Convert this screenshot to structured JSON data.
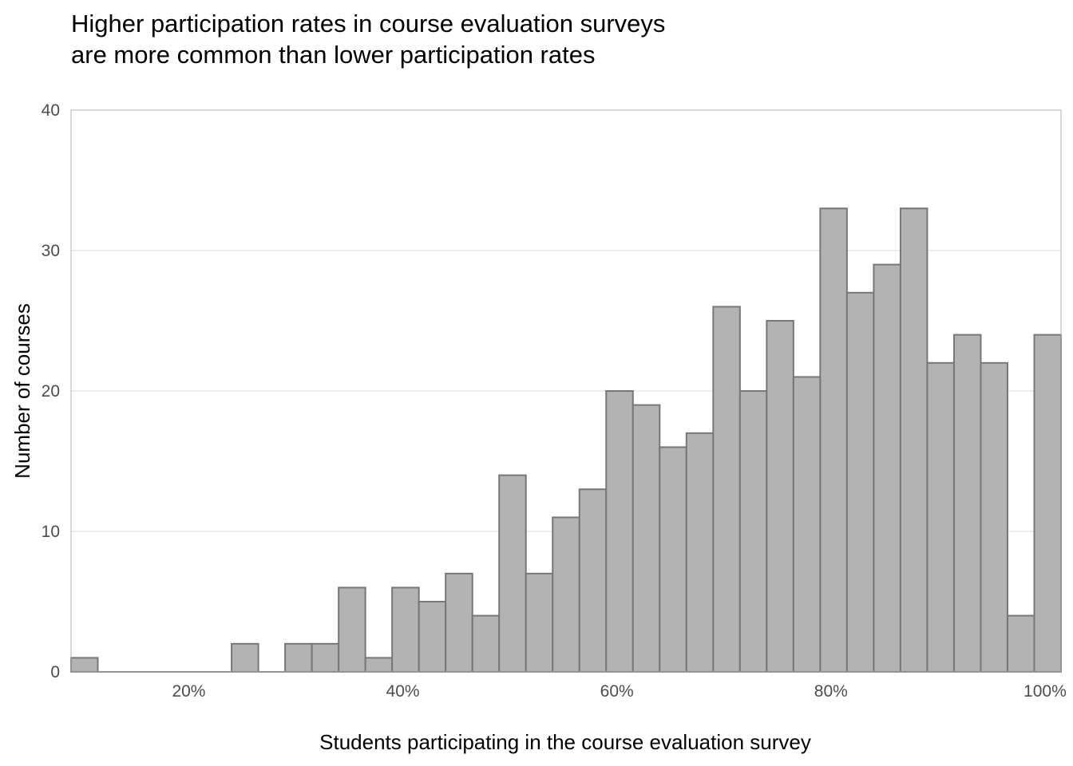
{
  "title_lines": [
    "Higher participation rates in course evaluation surveys",
    "are more common than lower participation rates"
  ],
  "colors": {
    "bar_fill": "#b3b3b3",
    "bar_stroke": "#777777",
    "grid": "#dcdcdc",
    "panel_border": "#b0b0b0",
    "tick_text": "#4d4d4d",
    "title_text": "#000000"
  },
  "chart_data": {
    "type": "bar",
    "subtype": "histogram",
    "title": "Higher participation rates in course evaluation surveys are more common than lower participation rates",
    "xlabel": "Students participating in the course evaluation survey",
    "ylabel": "Number of courses",
    "x_unit": "fraction of students",
    "bin_width": 0.025,
    "xlim": [
      0.09,
      1.015
    ],
    "ylim": [
      0,
      40
    ],
    "x_ticks": [
      0.2,
      0.4,
      0.6,
      0.8,
      1.0
    ],
    "x_tick_labels": [
      "20%",
      "40%",
      "60%",
      "80%",
      "100%"
    ],
    "y_ticks": [
      0,
      10,
      20,
      30,
      40
    ],
    "y_tick_labels": [
      "0",
      "10",
      "20",
      "30",
      "40"
    ],
    "grid": "horizontal major lines",
    "legend": "none",
    "bins": [
      {
        "x0": 0.09,
        "x1": 0.115,
        "count": 1
      },
      {
        "x0": 0.115,
        "x1": 0.14,
        "count": 0
      },
      {
        "x0": 0.14,
        "x1": 0.165,
        "count": 0
      },
      {
        "x0": 0.165,
        "x1": 0.19,
        "count": 0
      },
      {
        "x0": 0.19,
        "x1": 0.215,
        "count": 0
      },
      {
        "x0": 0.215,
        "x1": 0.24,
        "count": 0
      },
      {
        "x0": 0.24,
        "x1": 0.265,
        "count": 2
      },
      {
        "x0": 0.265,
        "x1": 0.29,
        "count": 0
      },
      {
        "x0": 0.29,
        "x1": 0.315,
        "count": 2
      },
      {
        "x0": 0.315,
        "x1": 0.34,
        "count": 2
      },
      {
        "x0": 0.34,
        "x1": 0.365,
        "count": 6
      },
      {
        "x0": 0.365,
        "x1": 0.39,
        "count": 1
      },
      {
        "x0": 0.39,
        "x1": 0.415,
        "count": 6
      },
      {
        "x0": 0.415,
        "x1": 0.44,
        "count": 5
      },
      {
        "x0": 0.44,
        "x1": 0.465,
        "count": 7
      },
      {
        "x0": 0.465,
        "x1": 0.49,
        "count": 4
      },
      {
        "x0": 0.49,
        "x1": 0.515,
        "count": 14
      },
      {
        "x0": 0.515,
        "x1": 0.54,
        "count": 7
      },
      {
        "x0": 0.54,
        "x1": 0.565,
        "count": 11
      },
      {
        "x0": 0.565,
        "x1": 0.59,
        "count": 13
      },
      {
        "x0": 0.59,
        "x1": 0.615,
        "count": 20
      },
      {
        "x0": 0.615,
        "x1": 0.64,
        "count": 19
      },
      {
        "x0": 0.64,
        "x1": 0.665,
        "count": 16
      },
      {
        "x0": 0.665,
        "x1": 0.69,
        "count": 17
      },
      {
        "x0": 0.69,
        "x1": 0.715,
        "count": 26
      },
      {
        "x0": 0.715,
        "x1": 0.74,
        "count": 20
      },
      {
        "x0": 0.74,
        "x1": 0.765,
        "count": 25
      },
      {
        "x0": 0.765,
        "x1": 0.79,
        "count": 21
      },
      {
        "x0": 0.79,
        "x1": 0.815,
        "count": 33
      },
      {
        "x0": 0.815,
        "x1": 0.84,
        "count": 27
      },
      {
        "x0": 0.84,
        "x1": 0.865,
        "count": 29
      },
      {
        "x0": 0.865,
        "x1": 0.89,
        "count": 33
      },
      {
        "x0": 0.89,
        "x1": 0.915,
        "count": 22
      },
      {
        "x0": 0.915,
        "x1": 0.94,
        "count": 24
      },
      {
        "x0": 0.94,
        "x1": 0.965,
        "count": 22
      },
      {
        "x0": 0.965,
        "x1": 0.99,
        "count": 4
      },
      {
        "x0": 0.99,
        "x1": 1.015,
        "count": 24
      }
    ]
  }
}
